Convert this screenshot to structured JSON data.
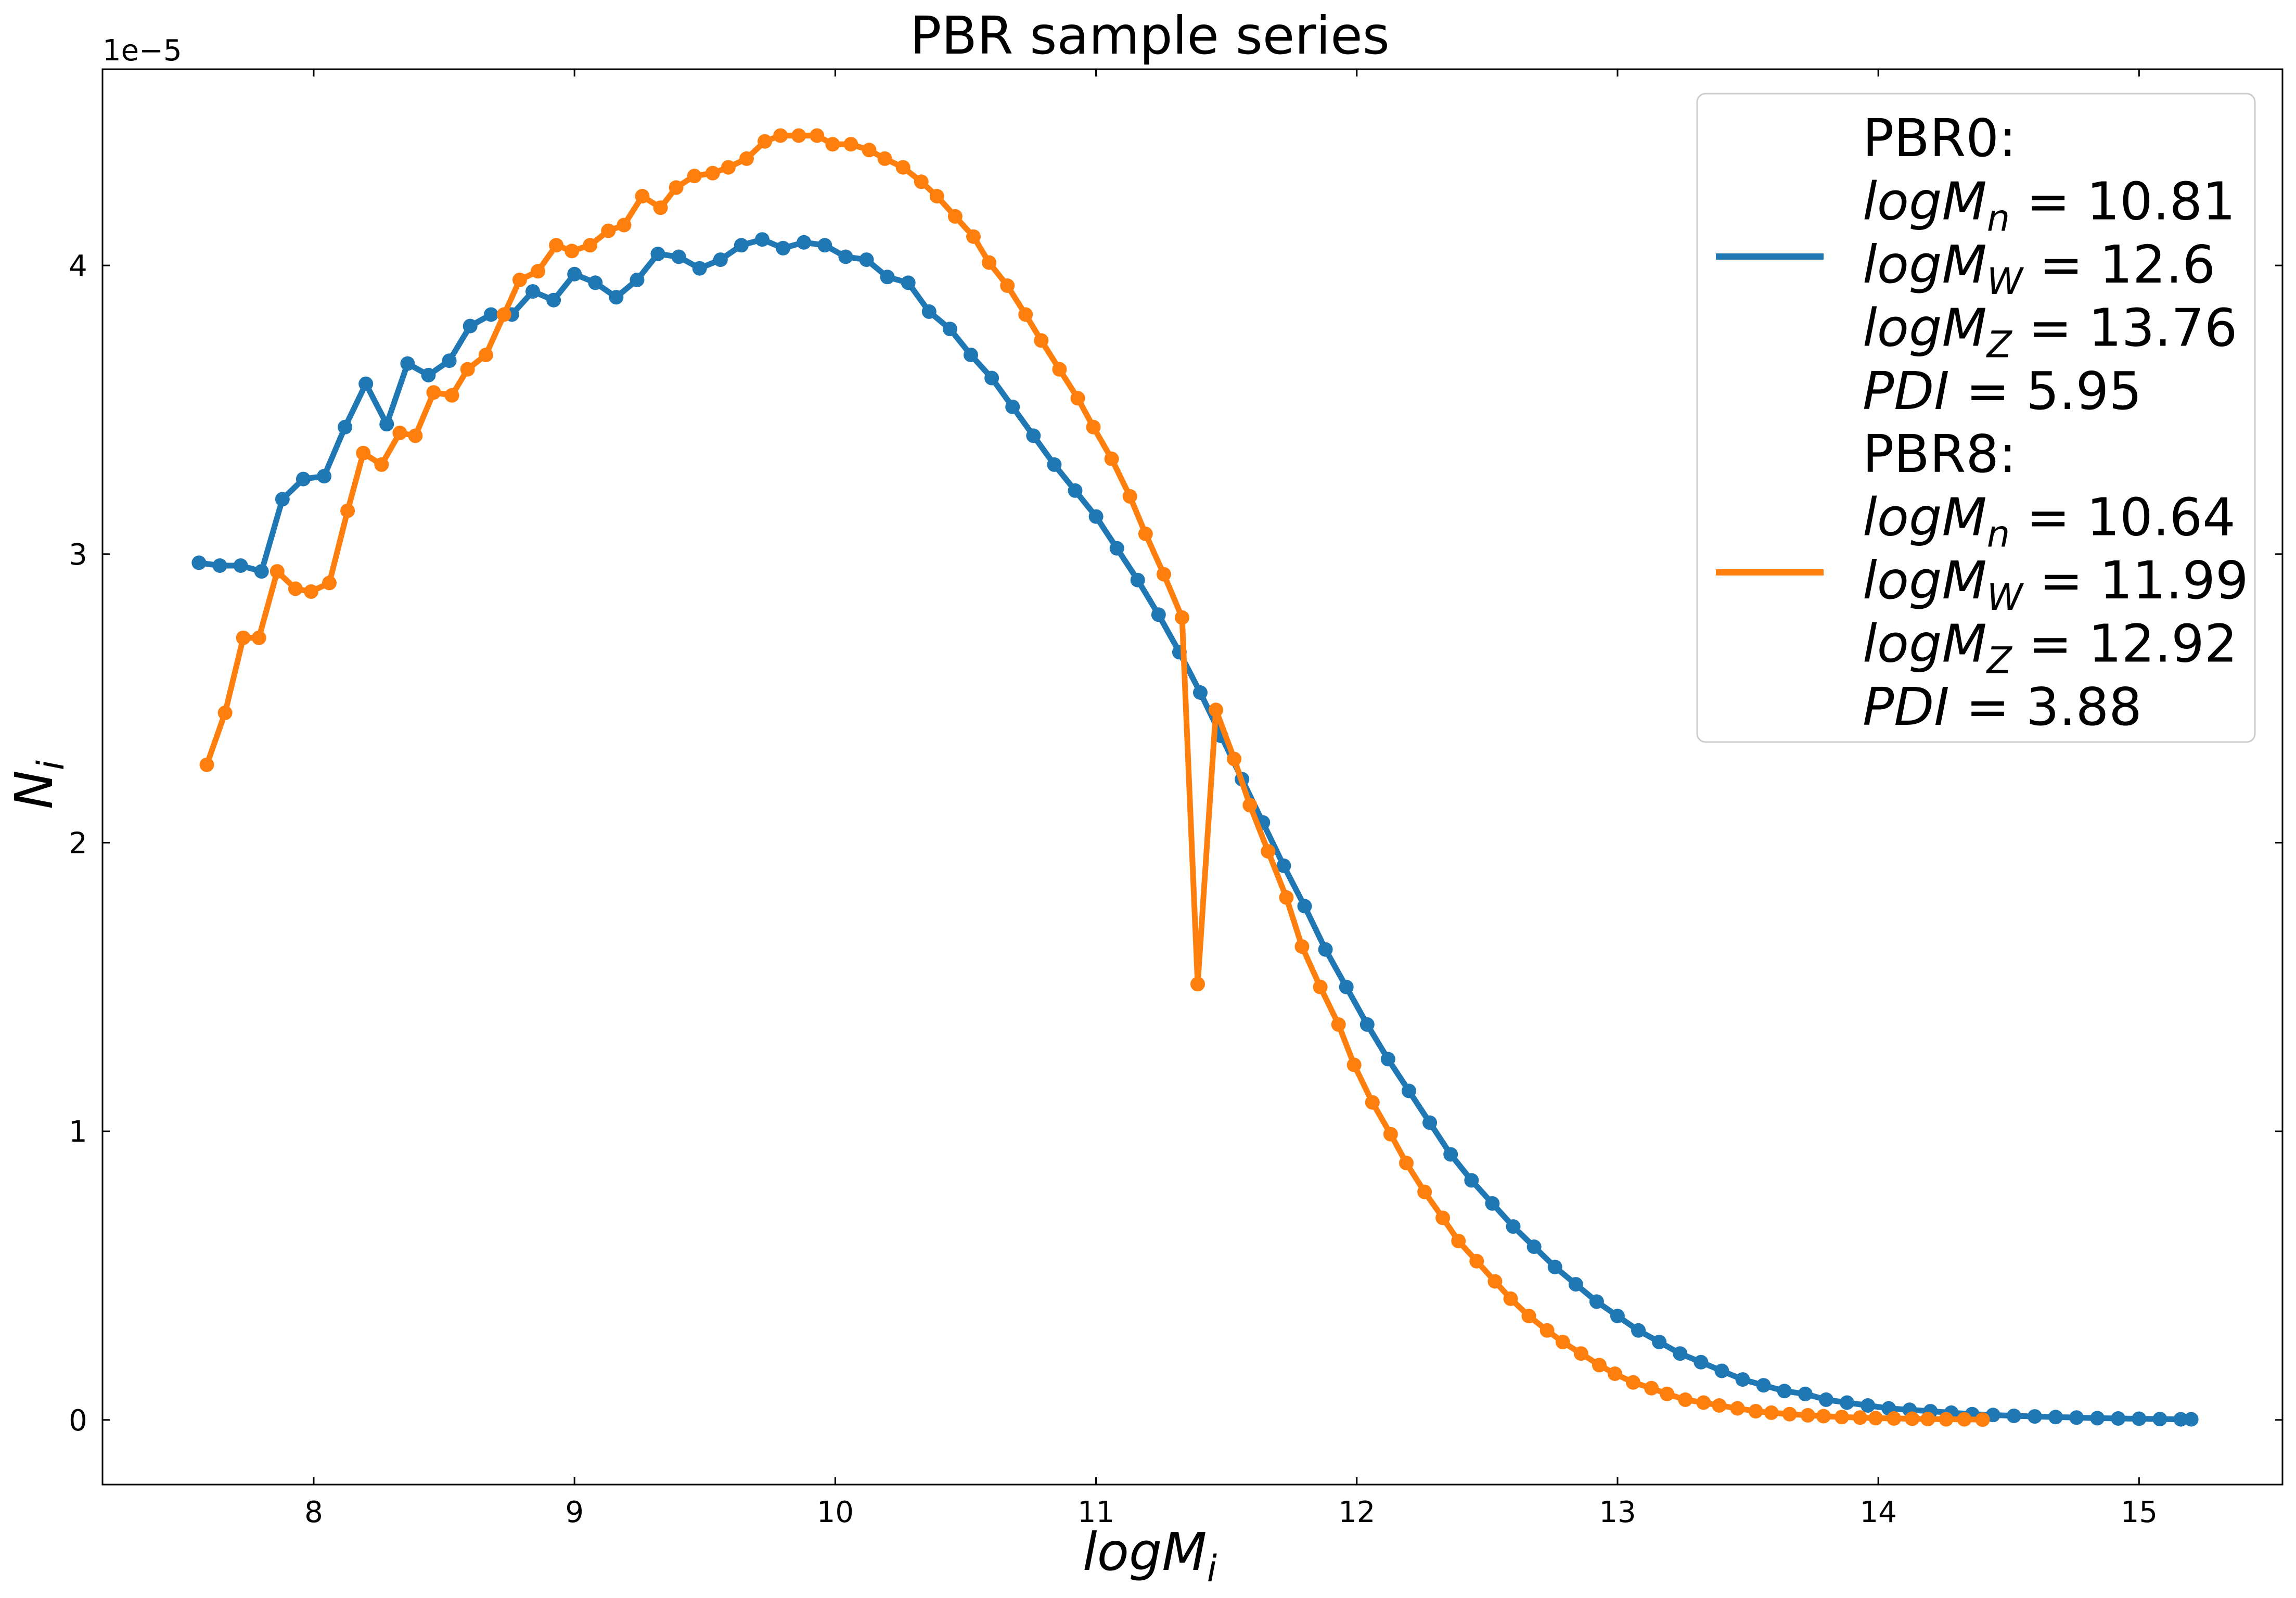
{
  "chart_data": {
    "type": "line",
    "title": "PBR sample series",
    "xlabel": "logM",
    "xlabel_sub": "i",
    "ylabel": "N",
    "ylabel_sub": "i",
    "y_offset_label": "1e−5",
    "xlim": [
      7.19,
      15.55
    ],
    "ylim": [
      -0.224,
      4.68
    ],
    "x_ticks": [
      8,
      9,
      10,
      11,
      12,
      13,
      14,
      15
    ],
    "x_tick_labels": [
      "8",
      "9",
      "10",
      "11",
      "12",
      "13",
      "14",
      "15"
    ],
    "y_ticks": [
      0,
      1,
      2,
      3,
      4
    ],
    "y_tick_labels": [
      "0",
      "1",
      "2",
      "3",
      "4"
    ],
    "legend_position": "top-right",
    "series": [
      {
        "name": "PBR0",
        "color": "#1f77b4",
        "legend_lines": [
          {
            "text": "PBR0:"
          },
          {
            "base": "logM",
            "sub": "n",
            "value": "10.81"
          },
          {
            "base": "logM",
            "sub": "W",
            "value": "12.6"
          },
          {
            "base": "logM",
            "sub": "Z",
            "value": "13.76"
          },
          {
            "base": "PDI",
            "sub": "",
            "value": "5.95"
          }
        ],
        "x": [
          7.56,
          7.64,
          7.72,
          7.8,
          7.88,
          7.96,
          8.04,
          8.12,
          8.2,
          8.28,
          8.36,
          8.44,
          8.52,
          8.6,
          8.68,
          8.76,
          8.84,
          8.92,
          9.0,
          9.08,
          9.16,
          9.24,
          9.32,
          9.4,
          9.48,
          9.56,
          9.64,
          9.72,
          9.8,
          9.88,
          9.96,
          10.04,
          10.12,
          10.2,
          10.28,
          10.36,
          10.44,
          10.52,
          10.6,
          10.68,
          10.76,
          10.84,
          10.92,
          11.0,
          11.08,
          11.16,
          11.24,
          11.32,
          11.4,
          11.48,
          11.56,
          11.64,
          11.72,
          11.8,
          11.88,
          11.96,
          12.04,
          12.12,
          12.2,
          12.28,
          12.36,
          12.44,
          12.52,
          12.6,
          12.68,
          12.76,
          12.84,
          12.92,
          13.0,
          13.08,
          13.16,
          13.24,
          13.32,
          13.4,
          13.48,
          13.56,
          13.64,
          13.72,
          13.8,
          13.88,
          13.96,
          14.04,
          14.12,
          14.2,
          14.28,
          14.36,
          14.44,
          14.52,
          14.6,
          14.68,
          14.76,
          14.84,
          14.92,
          15.0,
          15.08,
          15.16,
          15.2
        ],
        "values": [
          2.97,
          2.96,
          2.96,
          2.94,
          3.19,
          3.26,
          3.27,
          3.44,
          3.59,
          3.45,
          3.66,
          3.62,
          3.67,
          3.79,
          3.83,
          3.83,
          3.91,
          3.88,
          3.97,
          3.94,
          3.89,
          3.95,
          4.04,
          4.03,
          3.99,
          4.02,
          4.07,
          4.09,
          4.06,
          4.08,
          4.07,
          4.03,
          4.02,
          3.96,
          3.94,
          3.84,
          3.78,
          3.69,
          3.61,
          3.51,
          3.41,
          3.31,
          3.22,
          3.13,
          3.02,
          2.91,
          2.79,
          2.66,
          2.52,
          2.37,
          2.22,
          2.07,
          1.92,
          1.78,
          1.63,
          1.5,
          1.37,
          1.25,
          1.14,
          1.03,
          0.92,
          0.83,
          0.75,
          0.67,
          0.6,
          0.53,
          0.47,
          0.41,
          0.36,
          0.31,
          0.27,
          0.23,
          0.2,
          0.17,
          0.14,
          0.12,
          0.1,
          0.09,
          0.07,
          0.06,
          0.05,
          0.04,
          0.035,
          0.03,
          0.025,
          0.02,
          0.017,
          0.014,
          0.012,
          0.01,
          0.008,
          0.006,
          0.005,
          0.004,
          0.003,
          0.002,
          0.002
        ]
      },
      {
        "name": "PBR8",
        "color": "#ff7f0e",
        "legend_lines": [
          {
            "text": "PBR8:"
          },
          {
            "base": "logM",
            "sub": "n",
            "value": "10.64"
          },
          {
            "base": "logM",
            "sub": "W",
            "value": "11.99"
          },
          {
            "base": "logM",
            "sub": "Z",
            "value": "12.92"
          },
          {
            "base": "PDI",
            "sub": "",
            "value": "3.88"
          }
        ],
        "x": [
          7.59,
          7.66,
          7.73,
          7.79,
          7.86,
          7.93,
          7.99,
          8.06,
          8.13,
          8.19,
          8.26,
          8.33,
          8.39,
          8.46,
          8.53,
          8.59,
          8.66,
          8.73,
          8.79,
          8.86,
          8.93,
          8.99,
          9.06,
          9.13,
          9.19,
          9.26,
          9.33,
          9.39,
          9.46,
          9.53,
          9.59,
          9.66,
          9.73,
          9.79,
          9.86,
          9.93,
          9.99,
          10.06,
          10.13,
          10.19,
          10.26,
          10.33,
          10.39,
          10.46,
          10.53,
          10.59,
          10.66,
          10.73,
          10.79,
          10.86,
          10.93,
          10.99,
          11.06,
          11.13,
          11.19,
          11.26,
          11.33,
          11.39,
          11.46,
          11.53,
          11.59,
          11.66,
          11.73,
          11.79,
          11.86,
          11.93,
          11.99,
          12.06,
          12.13,
          12.19,
          12.26,
          12.33,
          12.39,
          12.46,
          12.53,
          12.59,
          12.66,
          12.73,
          12.79,
          12.86,
          12.93,
          12.99,
          13.06,
          13.13,
          13.19,
          13.26,
          13.33,
          13.39,
          13.46,
          13.53,
          13.59,
          13.66,
          13.73,
          13.79,
          13.86,
          13.93,
          13.99,
          14.06,
          14.13,
          14.19,
          14.26,
          14.33,
          14.4
        ],
        "values": [
          2.27,
          2.45,
          2.71,
          2.71,
          2.94,
          2.88,
          2.87,
          2.9,
          3.15,
          3.35,
          3.31,
          3.42,
          3.41,
          3.56,
          3.55,
          3.64,
          3.69,
          3.83,
          3.95,
          3.98,
          4.07,
          4.05,
          4.07,
          4.12,
          4.14,
          4.24,
          4.2,
          4.27,
          4.31,
          4.32,
          4.34,
          4.37,
          4.43,
          4.45,
          4.45,
          4.45,
          4.42,
          4.42,
          4.4,
          4.37,
          4.34,
          4.29,
          4.24,
          4.17,
          4.1,
          4.01,
          3.93,
          3.83,
          3.74,
          3.64,
          3.54,
          3.44,
          3.33,
          3.2,
          3.07,
          2.93,
          2.78,
          1.51,
          2.46,
          2.29,
          2.13,
          1.97,
          1.81,
          1.64,
          1.5,
          1.37,
          1.23,
          1.1,
          0.99,
          0.89,
          0.79,
          0.7,
          0.62,
          0.55,
          0.48,
          0.42,
          0.36,
          0.31,
          0.27,
          0.23,
          0.19,
          0.16,
          0.13,
          0.11,
          0.09,
          0.07,
          0.06,
          0.05,
          0.04,
          0.03,
          0.025,
          0.02,
          0.016,
          0.013,
          0.01,
          0.008,
          0.006,
          0.005,
          0.004,
          0.003,
          0.002,
          0.002,
          0.001
        ]
      }
    ]
  }
}
